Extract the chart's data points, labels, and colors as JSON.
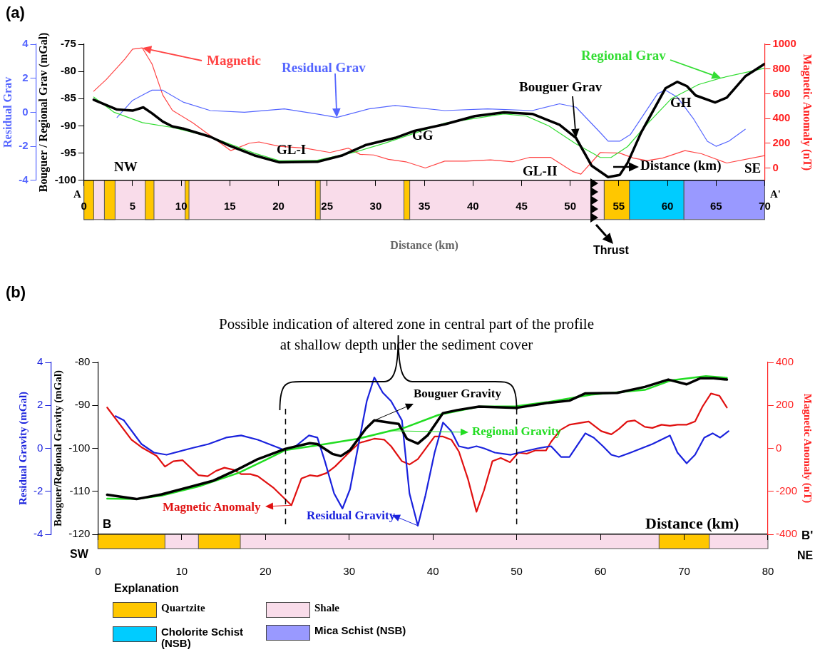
{
  "chart_data": [
    {
      "type": "line",
      "xlabel": "Distance (km)",
      "ylabel": "Bouguer / Regional Grav (mGal)",
      "y2label": "Magnetic Anomaly (nT)",
      "y3label": "Residual Grav",
      "xlim": [
        0,
        70
      ],
      "xticks": [
        0,
        5,
        10,
        15,
        20,
        25,
        30,
        35,
        40,
        45,
        50,
        55,
        60,
        65,
        70
      ],
      "ylim": [
        -100,
        -75
      ],
      "yticks": [
        -100,
        -95,
        -90,
        -85,
        -80,
        -75
      ],
      "y2lim": [
        -100,
        1000
      ],
      "y2ticks": [
        0,
        200,
        400,
        600,
        800,
        1000
      ],
      "y3lim": [
        -4,
        4
      ],
      "y3ticks": [
        -4,
        -2,
        0,
        2,
        4
      ],
      "grid": false,
      "legend": "top left",
      "series": [
        {
          "name": "Bouguer Grav",
          "color": "#000000",
          "x": [
            1.0,
            3.4,
            5.0,
            6.1,
            7.0,
            8.1,
            9.1,
            10.2,
            13.0,
            14.9,
            17.5,
            20.1,
            24.0,
            26.6,
            29.0,
            32.0,
            34.0,
            37.1,
            40.2,
            43.2,
            46.1,
            48.9,
            50.6,
            52.2,
            53.9,
            55.1,
            55.9,
            57.3,
            59.0,
            59.8,
            61.0,
            62.0,
            62.9,
            64.9,
            66.1,
            68.0,
            70.0
          ],
          "values": [
            -85.2,
            -87.0,
            -87.2,
            -86.6,
            -87.7,
            -89.2,
            -90.1,
            -90.5,
            -92.0,
            -93.6,
            -95.4,
            -96.7,
            -96.6,
            -95.4,
            -93.5,
            -92.2,
            -90.9,
            -89.7,
            -88.2,
            -87.5,
            -87.8,
            -89.8,
            -92.2,
            -97.3,
            -99.4,
            -99.0,
            -96.8,
            -91.2,
            -85.7,
            -83.1,
            -81.9,
            -82.7,
            -84.4,
            -85.7,
            -84.8,
            -80.9,
            -78.6
          ]
        },
        {
          "name": "Regional Grav",
          "color": "#33dd33",
          "x": [
            1.0,
            3.1,
            6.0,
            9.1,
            13.0,
            17.5,
            20.1,
            24.0,
            27.9,
            30.9,
            37.1,
            43.2,
            45.5,
            47.8,
            50.6,
            53.1,
            54.2,
            55.9,
            57.9,
            60.4,
            63.2,
            65.5,
            70.0
          ],
          "values": [
            -84.7,
            -87.5,
            -89.4,
            -90.3,
            -92.0,
            -95.0,
            -96.4,
            -96.3,
            -94.8,
            -93.2,
            -89.5,
            -87.8,
            -88.2,
            -90.0,
            -93.3,
            -95.8,
            -95.8,
            -93.8,
            -89.7,
            -85.0,
            -82.4,
            -81.2,
            -79.4
          ]
        },
        {
          "name": "Residual Grav",
          "color": "#5566ff",
          "axis": "y3",
          "x": [
            3.4,
            5.0,
            6.3,
            7.0,
            8.1,
            10.2,
            13.0,
            16.5,
            20.6,
            24.0,
            26.0,
            29.3,
            32.0,
            37.1,
            41.5,
            46.1,
            48.9,
            50.6,
            53.1,
            53.9,
            55.1,
            56.2,
            59.0,
            59.8,
            61.0,
            62.7,
            64.1,
            65.0,
            66.3,
            68.0
          ],
          "values": [
            -0.3,
            0.7,
            1.1,
            1.3,
            1.3,
            0.6,
            0.1,
            0.0,
            0.2,
            -0.1,
            -0.3,
            0.2,
            0.4,
            0.1,
            0.2,
            0.1,
            0.5,
            0.3,
            -1.2,
            -1.7,
            -1.7,
            -1.3,
            1.1,
            1.3,
            0.9,
            -0.4,
            -1.7,
            -2.0,
            -1.7,
            -1.0
          ]
        },
        {
          "name": "Magnetic",
          "color": "#ff4444",
          "axis": "y2",
          "x": [
            1.0,
            2.3,
            4.2,
            5.0,
            6.0,
            7.0,
            8.1,
            9.1,
            11.2,
            13.0,
            15.1,
            17.0,
            18.0,
            20.1,
            22.7,
            25.3,
            27.2,
            28.4,
            29.8,
            31.3,
            33.1,
            35.1,
            37.1,
            39.3,
            41.8,
            44.1,
            45.8,
            48.0,
            50.3,
            51.1,
            53.1,
            55.1,
            56.5,
            57.9,
            59.5,
            61.8,
            63.5,
            66.1,
            70.0
          ],
          "values": [
            620,
            715,
            880,
            960,
            970,
            840,
            590,
            465,
            365,
            260,
            140,
            200,
            210,
            175,
            160,
            125,
            160,
            110,
            105,
            70,
            50,
            0,
            55,
            55,
            65,
            50,
            85,
            85,
            -30,
            -50,
            125,
            120,
            80,
            60,
            80,
            140,
            115,
            40,
            100
          ]
        }
      ],
      "annotations": [
        "(a)",
        "A",
        "NW",
        "A'",
        "SE",
        "GL-I",
        "GG",
        "GL-II",
        "GH",
        "Distance (km)",
        "Thrust"
      ]
    },
    {
      "type": "line",
      "xlabel": "Distance (km)",
      "ylabel": "Bouguer/Regional Gravity (mGal)",
      "y2label": "Magnetic Anomaly (nT)",
      "y3label": "Residual Gravity (mGal)",
      "xlim": [
        0,
        80
      ],
      "xticks": [
        0,
        10,
        20,
        30,
        40,
        50,
        60,
        70,
        80
      ],
      "ylim": [
        -120,
        -80
      ],
      "yticks": [
        -120,
        -110,
        -100,
        -90,
        -80
      ],
      "y2lim": [
        -400,
        400
      ],
      "y2ticks": [
        -400,
        -200,
        0,
        200,
        400
      ],
      "y3lim": [
        -4,
        4
      ],
      "y3ticks": [
        -4,
        -2,
        0,
        2,
        4
      ],
      "grid": false,
      "legend": "bottom left",
      "series": [
        {
          "name": "Bouguer Gravity",
          "color": "#000000",
          "x": [
            1.1,
            4.6,
            7.6,
            11.1,
            13.8,
            16.8,
            19.1,
            22.4,
            25.3,
            26.2,
            28.0,
            29.0,
            30.1,
            32.0,
            33.0,
            35.9,
            36.9,
            38.2,
            39.4,
            41.2,
            42.9,
            45.5,
            49.9,
            53.8,
            56.3,
            58.2,
            62.0,
            65.3,
            68.1,
            70.3,
            71.9,
            73.5,
            75.1
          ],
          "values": [
            -110.8,
            -111.8,
            -110.7,
            -108.9,
            -107.5,
            -104.8,
            -102.5,
            -100.1,
            -98.8,
            -99.0,
            -101.3,
            -101.8,
            -100.4,
            -95.4,
            -93.5,
            -94.3,
            -97.8,
            -98.9,
            -96.9,
            -91.8,
            -91.1,
            -90.3,
            -90.6,
            -89.4,
            -88.9,
            -87.2,
            -87.1,
            -85.7,
            -84.0,
            -85.1,
            -83.7,
            -83.7,
            -84.0
          ]
        },
        {
          "name": "Regional Gravity",
          "color": "#22dd22",
          "x": [
            1.1,
            4.6,
            7.6,
            12.3,
            16.8,
            20.0,
            22.4,
            26.5,
            31.2,
            35.0,
            36.6,
            40.7,
            45.5,
            49.9,
            53.8,
            58.9,
            65.3,
            68.4,
            72.6,
            75.1
          ],
          "values": [
            -111.7,
            -111.8,
            -111.0,
            -108.7,
            -105.7,
            -102.7,
            -100.4,
            -99.2,
            -97.7,
            -95.9,
            -95.2,
            -92.2,
            -90.3,
            -90.2,
            -89.2,
            -87.5,
            -86.4,
            -84.2,
            -83.2,
            -83.6
          ]
        },
        {
          "name": "Residual Gravity",
          "color": "#1a22dd",
          "axis": "y3",
          "x": [
            2.1,
            3.1,
            5.2,
            6.7,
            8.2,
            11.1,
            13.2,
            15.3,
            17.1,
            19.1,
            22.4,
            23.6,
            25.2,
            26.2,
            27.1,
            28.2,
            29.2,
            30.1,
            32.1,
            33.0,
            34.0,
            35.0,
            36.3,
            37.2,
            38.2,
            39.1,
            40.2,
            41.2,
            42.2,
            43.1,
            44.2,
            45.2,
            46.1,
            47.4,
            49.3,
            50.3,
            52.5,
            54.1,
            55.3,
            56.3,
            58.2,
            59.2,
            60.3,
            61.3,
            62.2,
            63.6,
            66.2,
            68.3,
            69.2,
            70.3,
            71.3,
            72.4,
            73.4,
            74.3,
            75.3
          ],
          "values": [
            1.5,
            1.3,
            0.2,
            -0.2,
            -0.3,
            0.0,
            0.2,
            0.5,
            0.6,
            0.4,
            -0.1,
            0.1,
            0.6,
            0.5,
            -0.6,
            -2.1,
            -2.8,
            -1.9,
            2.2,
            3.3,
            2.6,
            2.2,
            1.3,
            -2.1,
            -3.6,
            -2.2,
            -0.2,
            1.2,
            0.8,
            0.1,
            0.0,
            0.1,
            0.0,
            -0.2,
            -0.3,
            -0.2,
            0.0,
            0.1,
            -0.4,
            -0.4,
            0.7,
            0.5,
            0.1,
            -0.3,
            -0.4,
            -0.2,
            0.2,
            0.6,
            -0.2,
            -0.7,
            -0.3,
            0.5,
            0.7,
            0.5,
            0.8
          ]
        },
        {
          "name": "Magnetic Anomaly",
          "color": "#e01010",
          "axis": "y2",
          "x": [
            1.1,
            4.0,
            5.2,
            7.0,
            8.0,
            9.0,
            10.1,
            12.0,
            13.1,
            14.1,
            15.1,
            16.2,
            17.1,
            18.2,
            19.1,
            21.0,
            23.1,
            24.3,
            25.3,
            26.2,
            27.3,
            28.3,
            30.1,
            31.2,
            33.0,
            34.2,
            35.0,
            36.3,
            37.2,
            38.2,
            40.2,
            41.2,
            42.2,
            43.1,
            44.2,
            45.2,
            46.1,
            47.1,
            48.1,
            49.2,
            50.2,
            51.2,
            52.2,
            53.5,
            54.1,
            55.2,
            56.3,
            58.6,
            60.1,
            61.3,
            62.2,
            63.2,
            64.1,
            65.3,
            66.2,
            67.3,
            68.3,
            69.2,
            70.3,
            71.3,
            72.2,
            73.2,
            74.2,
            75.1
          ],
          "values": [
            190,
            40,
            5,
            -35,
            -85,
            -60,
            -55,
            -125,
            -130,
            -105,
            -90,
            -100,
            -120,
            -120,
            -130,
            -185,
            -265,
            -140,
            -125,
            -130,
            -115,
            -85,
            -15,
            25,
            45,
            40,
            10,
            -60,
            -75,
            -50,
            55,
            55,
            40,
            -15,
            -145,
            -295,
            -195,
            -60,
            -45,
            -65,
            -20,
            -25,
            -10,
            -10,
            30,
            85,
            110,
            125,
            80,
            65,
            90,
            125,
            130,
            100,
            95,
            110,
            105,
            110,
            110,
            125,
            195,
            255,
            245,
            190
          ]
        }
      ],
      "ref_lines": [
        {
          "axis": "x",
          "value": 22.4,
          "line_style": "dashed"
        },
        {
          "axis": "x",
          "value": 50,
          "line_style": "dashed"
        }
      ],
      "annotations": [
        "(b)",
        "Possible indication of altered zone in central part of the profile at shallow depth under the sediment cover",
        "B",
        "B'",
        "SW",
        "NE"
      ]
    },
    {
      "type": "other",
      "title": "Explanation",
      "annotations": [
        "Quartzite",
        "Shale",
        "Cholorite Schist (NSB)",
        "Mica Schist (NSB)"
      ]
    }
  ]
}
